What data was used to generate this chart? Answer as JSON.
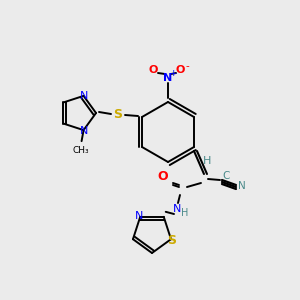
{
  "background_color": "#ebebeb",
  "atom_colors": {
    "N": "#0000ff",
    "O": "#ff0000",
    "S": "#ccaa00",
    "C": "#000000",
    "H": "#4a8a8a",
    "CN": "#4a8a8a"
  }
}
